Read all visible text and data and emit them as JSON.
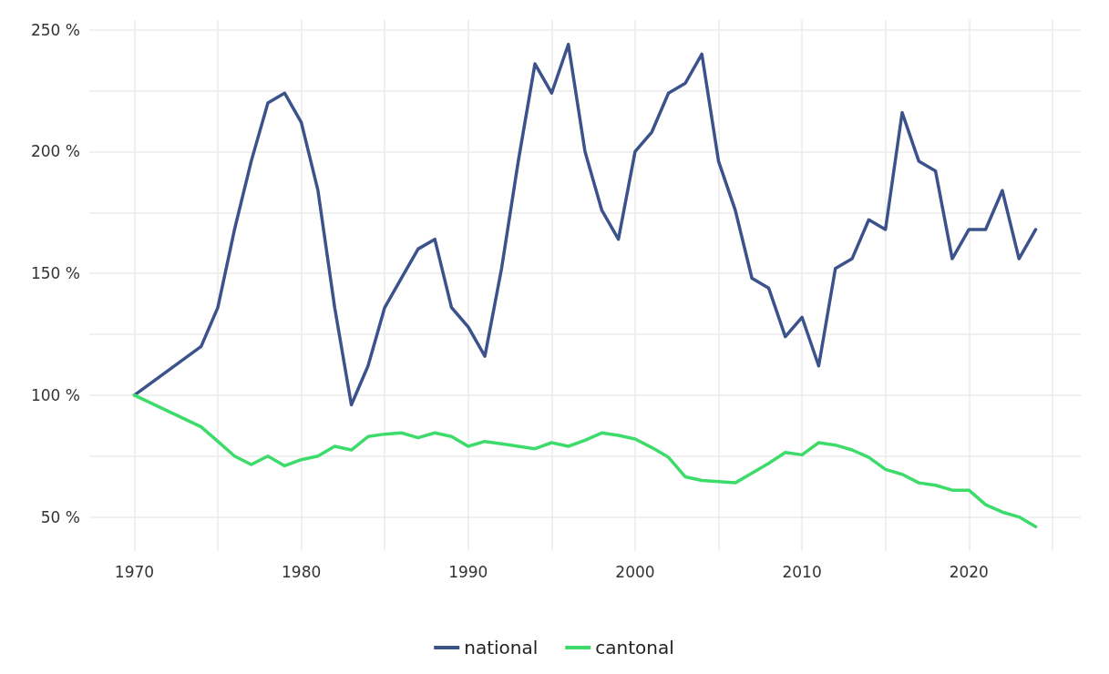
{
  "chart_data": {
    "type": "line",
    "x": [
      1970,
      1974,
      1975,
      1976,
      1977,
      1978,
      1979,
      1980,
      1981,
      1982,
      1983,
      1984,
      1985,
      1986,
      1987,
      1988,
      1989,
      1990,
      1991,
      1992,
      1993,
      1994,
      1995,
      1996,
      1997,
      1998,
      1999,
      2000,
      2001,
      2002,
      2003,
      2004,
      2005,
      2006,
      2007,
      2008,
      2009,
      2010,
      2011,
      2012,
      2013,
      2014,
      2015,
      2016,
      2017,
      2018,
      2019,
      2020,
      2021,
      2022,
      2023,
      2024
    ],
    "series": [
      {
        "name": "national",
        "color": "#3b528b",
        "values": [
          100,
          120,
          136,
          168,
          196,
          220,
          224,
          212,
          184,
          136,
          96,
          112,
          136,
          148,
          160,
          164,
          136,
          128,
          116,
          152,
          196,
          236,
          224,
          244,
          200,
          176,
          164,
          200,
          208,
          224,
          228,
          240,
          196,
          176,
          148,
          144,
          124,
          132,
          112,
          152,
          156,
          172,
          168,
          216,
          196,
          192,
          156,
          168,
          168,
          184,
          156,
          168
        ]
      },
      {
        "name": "cantonal",
        "color": "#3ddc6a",
        "values": [
          100,
          87,
          81,
          75,
          71.5,
          75,
          71,
          73.5,
          75,
          79,
          77.5,
          83,
          84,
          84.5,
          82.5,
          84.5,
          83,
          79,
          81,
          80,
          79,
          78,
          80.5,
          79,
          81.5,
          84.5,
          83.5,
          82,
          78.5,
          74.5,
          66.5,
          65,
          64.5,
          64,
          68,
          72,
          76.5,
          75.5,
          80.5,
          79.5,
          77.5,
          74.5,
          69.5,
          67.5,
          64,
          63,
          61,
          61,
          55,
          52,
          50,
          46
        ]
      }
    ],
    "xlim": [
      1967.3,
      2026.7
    ],
    "xticks": [
      1970,
      {
        "value": 1975,
        "label": null
      },
      1980,
      {
        "value": 1985,
        "label": null
      },
      1990,
      {
        "value": 1995,
        "label": null
      },
      2000,
      {
        "value": 2005,
        "label": null
      },
      2010,
      {
        "value": 2015,
        "label": null
      },
      2020,
      {
        "value": 2025,
        "label": null
      }
    ],
    "ylim": [
      36,
      254
    ],
    "yticks": [
      {
        "value": 50,
        "label": "50 %"
      },
      {
        "value": 75,
        "label": null
      },
      {
        "value": 100,
        "label": "100 %"
      },
      {
        "value": 125,
        "label": null
      },
      {
        "value": 150,
        "label": "150 %"
      },
      {
        "value": 175,
        "label": null
      },
      {
        "value": 200,
        "label": "200 %"
      },
      {
        "value": 225,
        "label": null
      },
      {
        "value": 250,
        "label": "250 %"
      }
    ],
    "grid": true,
    "legend": "bottom",
    "marker": "none",
    "line_style": "solid"
  }
}
